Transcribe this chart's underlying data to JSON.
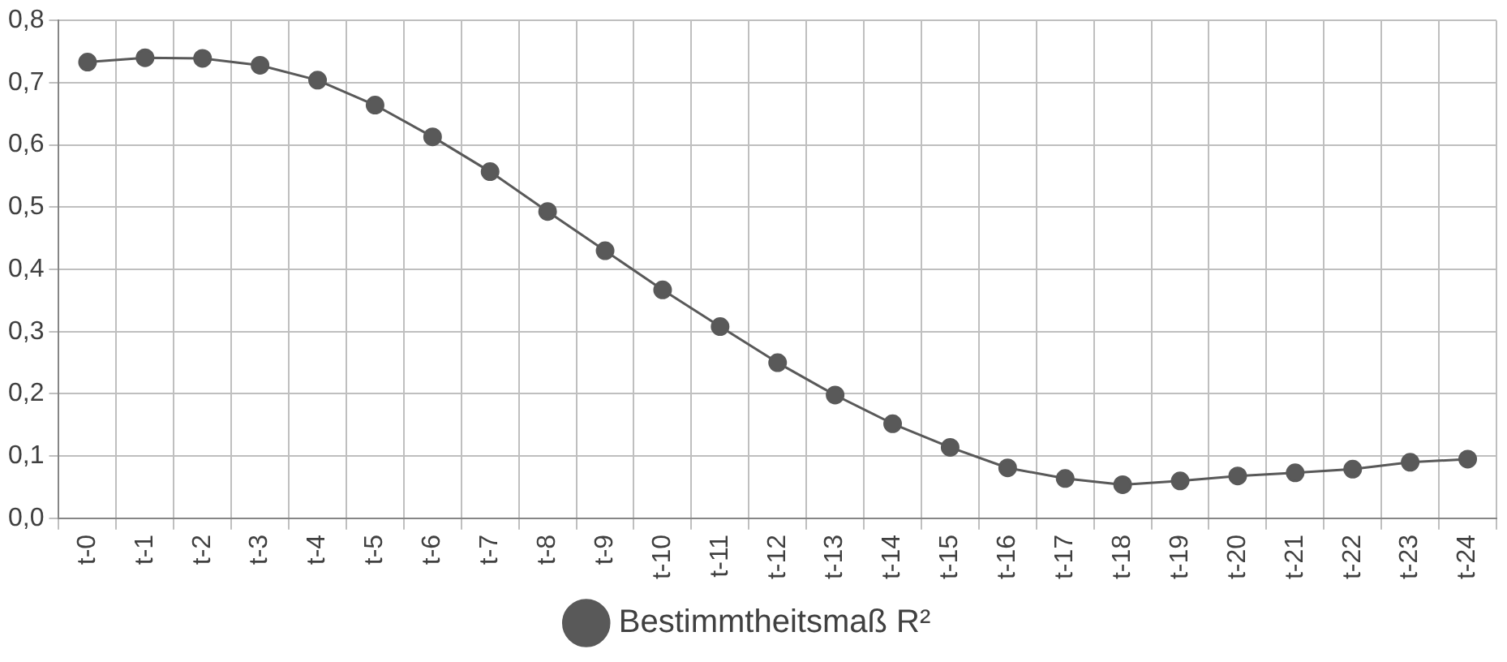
{
  "chart_data": {
    "type": "line",
    "categories": [
      "t-0",
      "t-1",
      "t-2",
      "t-3",
      "t-4",
      "t-5",
      "t-6",
      "t-7",
      "t-8",
      "t-9",
      "t-10",
      "t-11",
      "t-12",
      "t-13",
      "t-14",
      "t-15",
      "t-16",
      "t-17",
      "t-18",
      "t-19",
      "t-20",
      "t-21",
      "t-22",
      "t-23",
      "t-24"
    ],
    "series": [
      {
        "name": "Bestimmtheitsmaß R²",
        "color": "#595959",
        "values": [
          0.733,
          0.74,
          0.739,
          0.728,
          0.704,
          0.664,
          0.613,
          0.557,
          0.493,
          0.43,
          0.367,
          0.308,
          0.25,
          0.198,
          0.152,
          0.114,
          0.081,
          0.064,
          0.054,
          0.06,
          0.068,
          0.073,
          0.079,
          0.09,
          0.095
        ]
      }
    ],
    "ylim": [
      0,
      0.8
    ],
    "yticks": [
      {
        "value": 0,
        "label": "0,0"
      },
      {
        "value": 0.1,
        "label": "0,1"
      },
      {
        "value": 0.2,
        "label": "0,2"
      },
      {
        "value": 0.3,
        "label": "0,3"
      },
      {
        "value": 0.4,
        "label": "0,4"
      },
      {
        "value": 0.5,
        "label": "0,5"
      },
      {
        "value": 0.6,
        "label": "0,6"
      },
      {
        "value": 0.7,
        "label": "0,7"
      },
      {
        "value": 0.8,
        "label": "0,8"
      }
    ],
    "grid": true,
    "legend": "bottom",
    "marker": "circle",
    "line_style": "solid"
  }
}
